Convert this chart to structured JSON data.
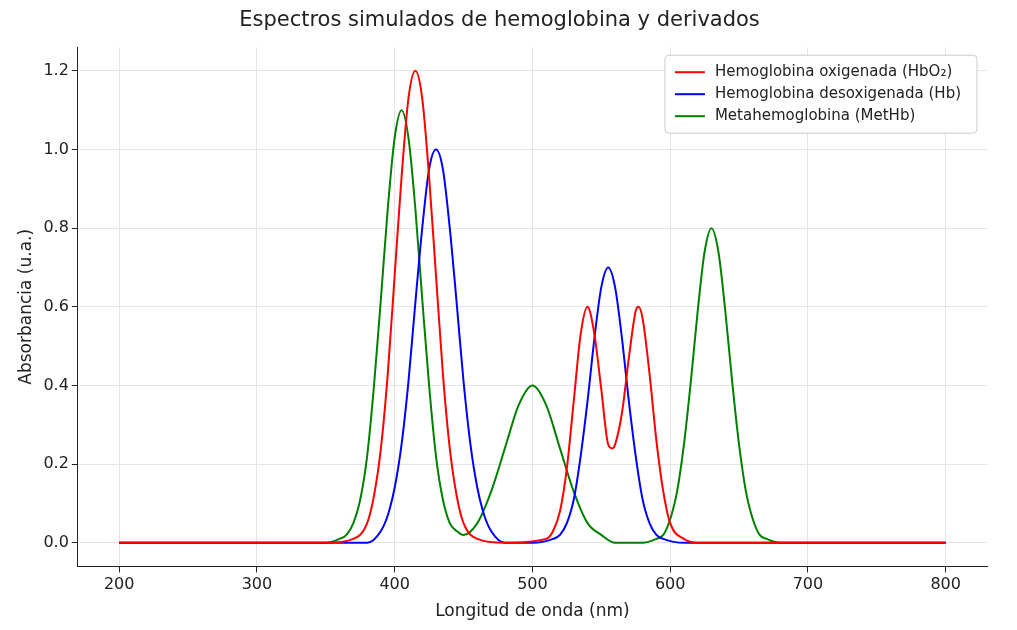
{
  "chart_data": {
    "type": "line",
    "title": "Espectros simulados de hemoglobina y derivados",
    "xlabel": "Longitud de onda (nm)",
    "ylabel": "Absorbancia (u.a.)",
    "xlim": [
      170,
      830
    ],
    "xticks": [
      200,
      300,
      400,
      500,
      600,
      700,
      800
    ],
    "ylim": [
      -0.06,
      1.26
    ],
    "yticks": [
      {
        "value": 0,
        "label": "0.0"
      },
      {
        "value": 0.2,
        "label": "0.2"
      },
      {
        "value": 0.4,
        "label": "0.4"
      },
      {
        "value": 0.6,
        "label": "0.6"
      },
      {
        "value": 0.8,
        "label": "0.8"
      },
      {
        "value": 1,
        "label": "1.0"
      },
      {
        "value": 1.2,
        "label": "1.2"
      }
    ],
    "grid": true,
    "legend": "top right",
    "marker": "none",
    "line_style": "solid",
    "series": [
      {
        "name": "Hemoglobina oxigenada (HbO₂)",
        "color": "#ff0000",
        "x": [
          200,
          350,
          370,
          380,
          385,
          390,
          395,
          400,
          405,
          410,
          415,
          420,
          425,
          430,
          435,
          440,
          445,
          450,
          460,
          480,
          510,
          515,
          520,
          525,
          530,
          535,
          540,
          545,
          550,
          555,
          558,
          560,
          565,
          570,
          575,
          577,
          580,
          585,
          590,
          595,
          600,
          610,
          620,
          800
        ],
        "values": [
          0,
          0,
          0.01,
          0.05,
          0.12,
          0.24,
          0.43,
          0.68,
          0.93,
          1.13,
          1.2,
          1.13,
          0.93,
          0.68,
          0.43,
          0.24,
          0.12,
          0.05,
          0.01,
          0,
          0.01,
          0.03,
          0.08,
          0.19,
          0.36,
          0.53,
          0.6,
          0.53,
          0.39,
          0.25,
          0.24,
          0.25,
          0.33,
          0.47,
          0.59,
          0.6,
          0.57,
          0.43,
          0.26,
          0.13,
          0.05,
          0.01,
          0,
          0
        ]
      },
      {
        "name": "Hemoglobina desoxigenada (Hb)",
        "color": "#0000ff",
        "x": [
          200,
          360,
          380,
          390,
          395,
          400,
          405,
          410,
          415,
          420,
          425,
          430,
          435,
          440,
          445,
          450,
          455,
          460,
          465,
          470,
          480,
          500,
          515,
          520,
          525,
          530,
          535,
          540,
          545,
          550,
          555,
          560,
          565,
          570,
          575,
          580,
          585,
          590,
          595,
          610,
          800
        ],
        "values": [
          0,
          0,
          0,
          0.03,
          0.07,
          0.14,
          0.25,
          0.41,
          0.61,
          0.8,
          0.95,
          1,
          0.95,
          0.8,
          0.61,
          0.41,
          0.25,
          0.14,
          0.07,
          0.03,
          0,
          0,
          0.01,
          0.02,
          0.05,
          0.11,
          0.22,
          0.36,
          0.52,
          0.65,
          0.7,
          0.65,
          0.52,
          0.36,
          0.22,
          0.11,
          0.05,
          0.02,
          0.01,
          0,
          0
        ]
      },
      {
        "name": "Metahemoglobina (MetHb)",
        "color": "#008000",
        "x": [
          200,
          350,
          360,
          365,
          370,
          375,
          380,
          385,
          390,
          395,
          400,
          405,
          410,
          415,
          420,
          425,
          430,
          435,
          440,
          445,
          450,
          460,
          470,
          480,
          490,
          500,
          510,
          520,
          530,
          540,
          550,
          560,
          580,
          590,
          595,
          600,
          605,
          610,
          615,
          620,
          625,
          630,
          635,
          640,
          645,
          650,
          655,
          660,
          665,
          670,
          680,
          800
        ],
        "values": [
          0,
          0,
          0.01,
          0.02,
          0.05,
          0.11,
          0.22,
          0.4,
          0.62,
          0.85,
          1.03,
          1.1,
          1.03,
          0.85,
          0.62,
          0.4,
          0.22,
          0.11,
          0.05,
          0.03,
          0.02,
          0.05,
          0.13,
          0.24,
          0.35,
          0.4,
          0.35,
          0.24,
          0.13,
          0.05,
          0.02,
          0,
          0,
          0.01,
          0.02,
          0.06,
          0.13,
          0.25,
          0.41,
          0.59,
          0.74,
          0.8,
          0.74,
          0.59,
          0.41,
          0.25,
          0.13,
          0.06,
          0.02,
          0.01,
          0,
          0
        ]
      }
    ]
  }
}
